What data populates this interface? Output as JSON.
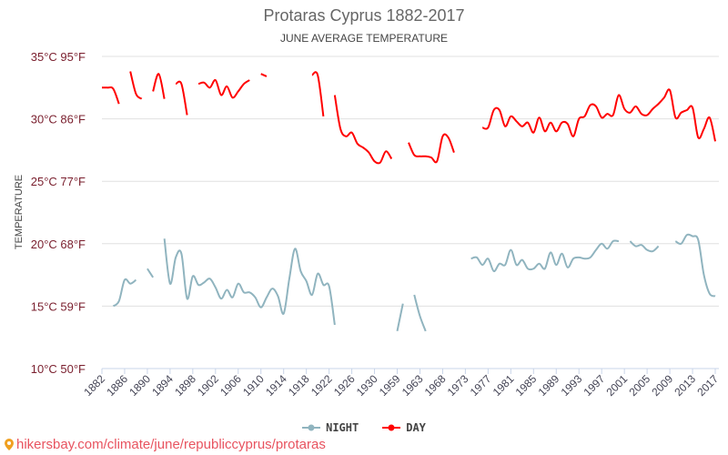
{
  "chart_data": {
    "type": "line",
    "title": "Protaras Cyprus 1882-2017",
    "subtitle": "JUNE AVERAGE TEMPERATURE",
    "ylabel": "TEMPERATURE",
    "ylim": [
      10,
      35
    ],
    "y_ticks": [
      {
        "value": 10,
        "label": "10°C 50°F"
      },
      {
        "value": 15,
        "label": "15°C 59°F"
      },
      {
        "value": 20,
        "label": "20°C 68°F"
      },
      {
        "value": 25,
        "label": "25°C 77°F"
      },
      {
        "value": 30,
        "label": "30°C 86°F"
      },
      {
        "value": 35,
        "label": "35°C 95°F"
      }
    ],
    "x_tick_labels": [
      "1882",
      "1886",
      "1890",
      "1894",
      "1898",
      "1902",
      "1906",
      "1910",
      "1914",
      "1918",
      "1922",
      "1926",
      "1930",
      "1959",
      "1963",
      "1968",
      "1973",
      "1977",
      "1981",
      "1985",
      "1989",
      "1993",
      "1997",
      "2001",
      "2005",
      "2009",
      "2013",
      "2017"
    ],
    "category_count": 109,
    "grid": true,
    "legend_placement": "bottom",
    "series": [
      {
        "name": "NIGHT",
        "color": "#90b4bf",
        "values": [
          null,
          null,
          15.0,
          15.4,
          17.1,
          16.8,
          17.1,
          null,
          18.0,
          17.3,
          null,
          20.4,
          16.8,
          18.9,
          19.2,
          15.6,
          17.4,
          16.7,
          16.9,
          17.2,
          16.5,
          15.6,
          16.3,
          15.7,
          16.8,
          16.1,
          16.1,
          15.7,
          14.9,
          15.7,
          16.4,
          15.8,
          14.4,
          17.2,
          19.6,
          17.8,
          17.0,
          15.9,
          17.6,
          16.7,
          16.6,
          13.5,
          null,
          null,
          null,
          null,
          null,
          null,
          null,
          null,
          null,
          null,
          13.0,
          15.2,
          null,
          15.9,
          14.2,
          13.0,
          null,
          null,
          null,
          null,
          null,
          null,
          null,
          18.8,
          18.9,
          18.3,
          18.8,
          17.8,
          18.4,
          18.3,
          19.5,
          18.3,
          18.7,
          18.0,
          18.0,
          18.4,
          18.0,
          19.3,
          18.3,
          19.2,
          18.1,
          18.8,
          18.9,
          18.8,
          18.9,
          19.5,
          20.0,
          19.6,
          20.2,
          20.2,
          null,
          20.2,
          19.8,
          19.9,
          19.5,
          19.4,
          19.8,
          null,
          null,
          20.2,
          20.0,
          20.7,
          20.6,
          20.3,
          17.5,
          16.0,
          15.8
        ]
      },
      {
        "name": "DAY",
        "color": "#ff0000",
        "values": [
          32.5,
          32.5,
          32.4,
          31.2,
          null,
          33.8,
          32.0,
          31.6,
          null,
          32.2,
          33.6,
          31.6,
          null,
          32.8,
          32.8,
          30.3,
          null,
          32.8,
          32.9,
          32.5,
          33.1,
          31.9,
          32.6,
          31.7,
          32.2,
          32.8,
          33.1,
          null,
          33.6,
          33.4,
          null,
          null,
          null,
          null,
          null,
          null,
          null,
          33.5,
          33.5,
          30.2,
          null,
          31.9,
          29.2,
          28.6,
          28.9,
          28.0,
          27.7,
          27.3,
          26.6,
          26.5,
          27.4,
          26.8,
          null,
          null,
          28.1,
          27.1,
          27.0,
          27.0,
          26.9,
          26.6,
          28.6,
          28.5,
          27.3,
          null,
          null,
          null,
          null,
          29.3,
          29.3,
          30.7,
          30.7,
          29.4,
          30.2,
          29.8,
          29.4,
          29.7,
          28.9,
          30.1,
          29.0,
          29.7,
          29.0,
          29.7,
          29.6,
          28.6,
          30.0,
          30.2,
          31.1,
          31.0,
          30.1,
          30.4,
          30.3,
          31.9,
          30.8,
          30.5,
          31.0,
          30.4,
          30.3,
          30.8,
          31.2,
          31.7,
          32.3,
          30.1,
          30.5,
          30.7,
          30.9,
          28.5,
          29.2,
          30.1,
          28.2
        ]
      }
    ]
  },
  "legend": {
    "night": "NIGHT",
    "day": "DAY"
  },
  "footer": {
    "url": "hikersbay.com/climate/june/republiccyprus/protaras"
  }
}
